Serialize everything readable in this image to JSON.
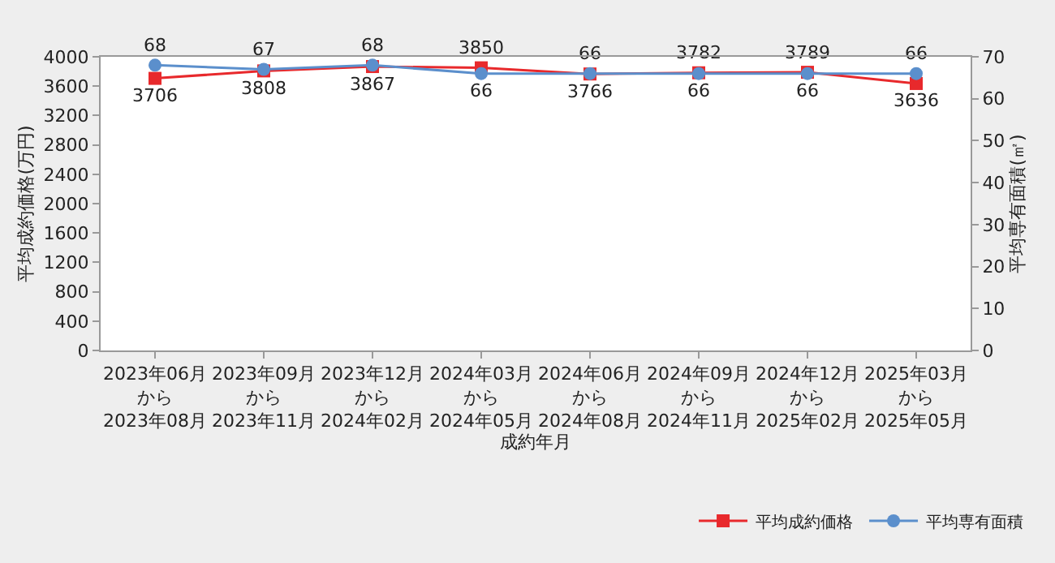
{
  "chart_data": {
    "type": "line",
    "xlabel": "成約年月",
    "ylabel": "平均成約価格(万円)",
    "y2label": "平均専有面積(㎡)",
    "categories": [
      "2023年06月から2023年08月",
      "2023年09月から2023年11月",
      "2023年12月から2024年02月",
      "2024年03月から2024年05月",
      "2024年06月から2024年08月",
      "2024年09月から2024年11月",
      "2024年12月から2025年02月",
      "2025年03月から2025年05月"
    ],
    "series": [
      {
        "name": "平均成約価格",
        "color": "#e8292c",
        "marker": "square",
        "values": [
          3706,
          3808,
          3867,
          3850,
          3766,
          3782,
          3789,
          3636
        ]
      },
      {
        "name": "平均専有面積",
        "color": "#5b8fcc",
        "marker": "circle",
        "axis": "y2",
        "values": [
          68,
          67,
          68,
          66,
          66,
          66,
          66,
          66
        ]
      }
    ],
    "ylim": [
      0,
      4000
    ],
    "yticks": [
      0,
      400,
      800,
      1200,
      1600,
      2000,
      2400,
      2800,
      3200,
      3600,
      4000
    ],
    "y2lim": [
      0,
      70
    ],
    "y2ticks": [
      0,
      10,
      20,
      30,
      40,
      50,
      60,
      70
    ],
    "data_labels": true,
    "legend": "bottom right"
  }
}
